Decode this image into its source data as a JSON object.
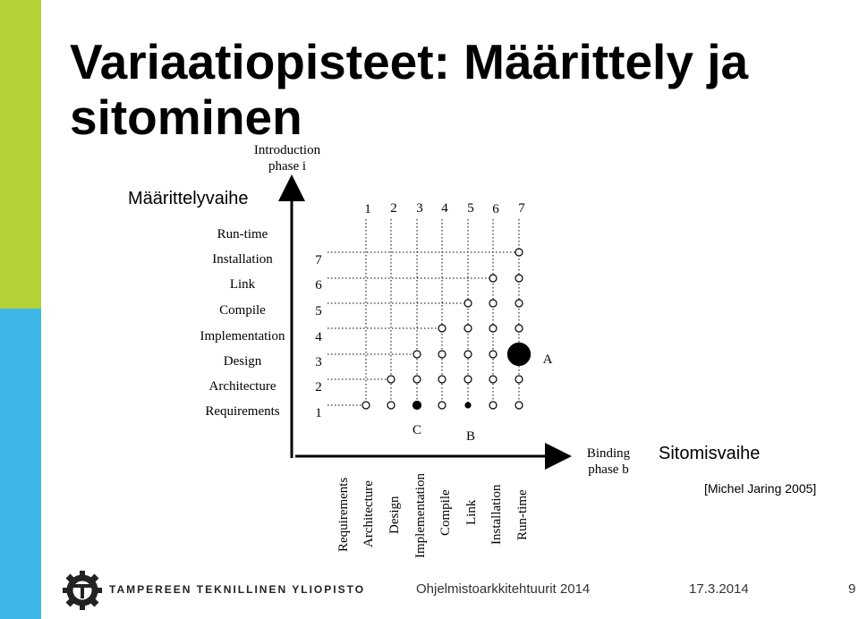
{
  "slide": {
    "title_line1": "Variaatiopisteet: Määrittely ja",
    "title_line2": "sitominen",
    "label_definition_phase": "Määrittelyvaihe",
    "label_binding_phase": "Sitomisvaihe",
    "citation": "[Michel Jaring 2005]"
  },
  "diagram": {
    "y_axis_title_line1": "Introduction",
    "y_axis_title_line2": "phase i",
    "x_axis_title_line1": "Binding",
    "x_axis_title_line2": "phase b",
    "phases": [
      "Requirements",
      "Architecture",
      "Design",
      "Implementation",
      "Compile",
      "Link",
      "Installation",
      "Run-time"
    ],
    "col_numbers": [
      "1",
      "2",
      "3",
      "4",
      "5",
      "6",
      "7"
    ],
    "row_numbers": [
      "1",
      "2",
      "3",
      "4",
      "5",
      "6",
      "7"
    ],
    "point_labels": {
      "A": "A",
      "B": "B",
      "C": "C"
    },
    "colors": {
      "line": "#000000",
      "point_fill": "#ffffff",
      "marked_fill": "#000000"
    }
  },
  "footer": {
    "org": "TAMPEREEN TEKNILLINEN YLIOPISTO",
    "course": "Ohjelmistoarkkitehtuurit 2014",
    "date": "17.3.2014",
    "page": "9"
  }
}
